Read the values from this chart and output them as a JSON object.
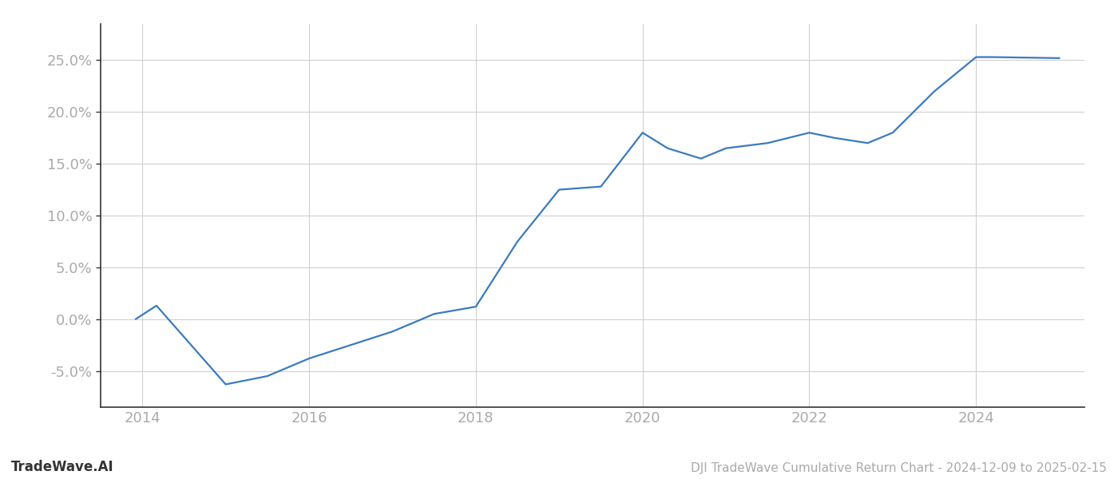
{
  "x_years": [
    2013.92,
    2014.17,
    2015.0,
    2015.5,
    2016.0,
    2016.5,
    2017.0,
    2017.5,
    2018.0,
    2018.5,
    2019.0,
    2019.5,
    2020.0,
    2020.3,
    2020.7,
    2021.0,
    2021.5,
    2022.0,
    2022.3,
    2022.7,
    2023.0,
    2023.5,
    2024.0,
    2024.2,
    2025.0
  ],
  "y_values": [
    0.0,
    1.3,
    -6.3,
    -5.5,
    -3.8,
    -2.5,
    -1.2,
    0.5,
    1.2,
    7.5,
    12.5,
    12.8,
    18.0,
    16.5,
    15.5,
    16.5,
    17.0,
    18.0,
    17.5,
    17.0,
    18.0,
    22.0,
    25.3,
    25.3,
    25.2
  ],
  "line_color": "#3a7bbf",
  "line_width": 1.6,
  "yticks": [
    -5.0,
    0.0,
    5.0,
    10.0,
    15.0,
    20.0,
    25.0
  ],
  "xticks": [
    2014,
    2016,
    2018,
    2020,
    2022,
    2024
  ],
  "xlim": [
    2013.5,
    2025.3
  ],
  "ylim": [
    -8.5,
    28.5
  ],
  "grid_color": "#d0d0d0",
  "background_color": "#ffffff",
  "footer_left": "TradeWave.AI",
  "footer_right": "DJI TradeWave Cumulative Return Chart - 2024-12-09 to 2025-02-15",
  "footer_color": "#aaaaaa",
  "tick_label_color": "#aaaaaa",
  "tick_fontsize": 13,
  "spine_color": "#333333",
  "left_spine_visible": true
}
